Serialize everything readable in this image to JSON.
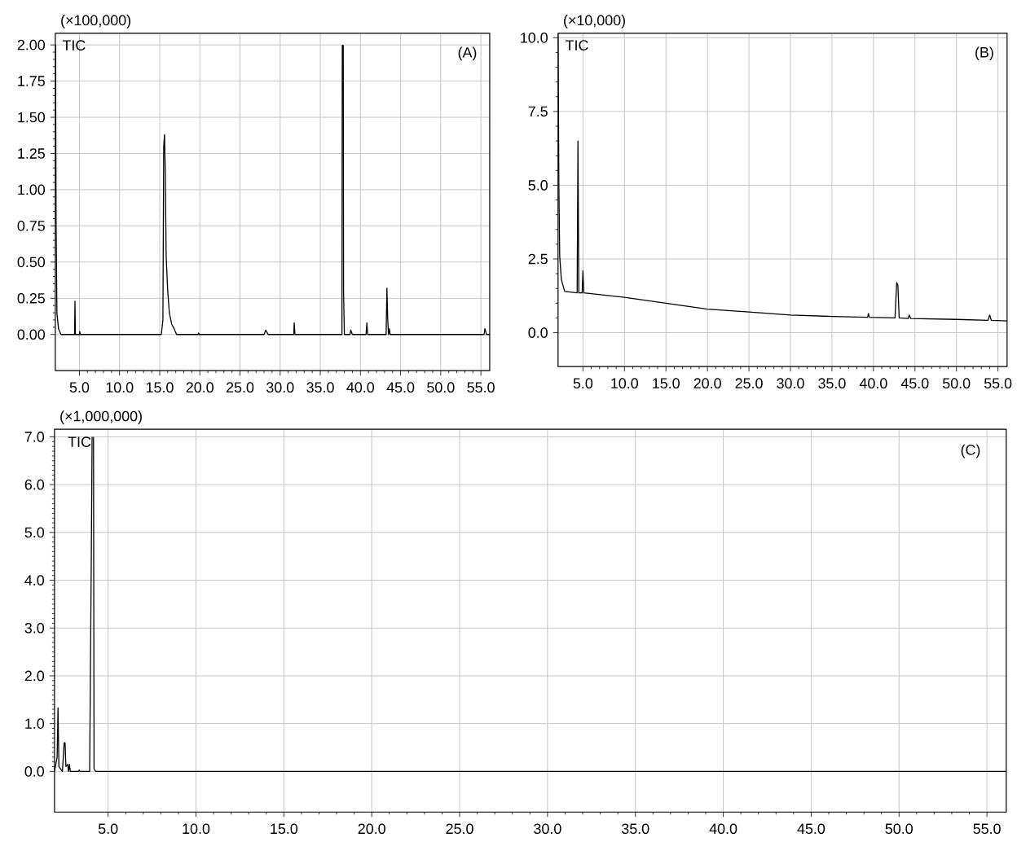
{
  "chart_data": [
    {
      "type": "line",
      "ylabel": "(×100,000)",
      "annotations": [
        "TIC",
        "(A)"
      ],
      "grid": true,
      "xlim": [
        2.0,
        56.1
      ],
      "ylim": [
        -0.25,
        2.08
      ],
      "xticks": [
        {
          "value": 5,
          "label": "5.0"
        },
        {
          "value": 10,
          "label": "10.0"
        },
        {
          "value": 15,
          "label": "15.0"
        },
        {
          "value": 20,
          "label": "20.0"
        },
        {
          "value": 25,
          "label": "25.0"
        },
        {
          "value": 30,
          "label": "30.0"
        },
        {
          "value": 35,
          "label": "35.0"
        },
        {
          "value": 40,
          "label": "40.0"
        },
        {
          "value": 45,
          "label": "45.0"
        },
        {
          "value": 50,
          "label": "50.0"
        },
        {
          "value": 55,
          "label": "55.0"
        }
      ],
      "yticks": [
        {
          "value": 0,
          "label": "0.00"
        },
        {
          "value": 0.25,
          "label": "0.25"
        },
        {
          "value": 0.5,
          "label": "0.50"
        },
        {
          "value": 0.75,
          "label": "0.75"
        },
        {
          "value": 1,
          "label": "1.00"
        },
        {
          "value": 1.25,
          "label": "1.25"
        },
        {
          "value": 1.5,
          "label": "1.50"
        },
        {
          "value": 1.75,
          "label": "1.75"
        },
        {
          "value": 2,
          "label": "2.00"
        }
      ],
      "series": [
        {
          "color": "#000000",
          "x": [
            2.03,
            2.1,
            2.2,
            2.4,
            2.7,
            4.4,
            4.45,
            4.5,
            5.0,
            5.05,
            5.1,
            15.2,
            15.4,
            15.5,
            15.6,
            15.7,
            15.8,
            15.9,
            16.0,
            16.2,
            16.5,
            16.8,
            17.1,
            19.8,
            19.85,
            19.9,
            28.0,
            28.2,
            28.5,
            31.7,
            31.75,
            31.85,
            37.7,
            37.74,
            37.8,
            37.86,
            37.9,
            38.0,
            38.7,
            38.8,
            39.0,
            40.7,
            40.8,
            40.9,
            43.2,
            43.3,
            43.4,
            43.5,
            43.6,
            43.7,
            55.4,
            55.5,
            55.7,
            56.1
          ],
          "values": [
            2.0,
            0.75,
            0.15,
            0.04,
            0.0,
            0.0,
            0.23,
            0.0,
            0.0,
            0.02,
            0.0,
            0.0,
            0.1,
            1.3,
            1.38,
            1.1,
            0.55,
            0.42,
            0.3,
            0.15,
            0.07,
            0.04,
            0.0,
            0.0,
            0.01,
            0.0,
            0.0,
            0.03,
            0.0,
            0.0,
            0.08,
            0.0,
            0.0,
            2.0,
            null,
            2.0,
            0.3,
            0.0,
            0.0,
            0.03,
            0.0,
            0.0,
            0.08,
            0.0,
            0.0,
            0.32,
            0.1,
            0.0,
            0.04,
            0.0,
            0.0,
            0.04,
            0.0,
            0.0
          ]
        }
      ]
    },
    {
      "type": "line",
      "ylabel": "(×10,000)",
      "annotations": [
        "TIC",
        "(B)"
      ],
      "grid": true,
      "xlim": [
        2.0,
        56.1
      ],
      "ylim": [
        -1.15,
        10.15
      ],
      "xticks": [
        {
          "value": 5,
          "label": "5.0"
        },
        {
          "value": 10,
          "label": "10.0"
        },
        {
          "value": 15,
          "label": "15.0"
        },
        {
          "value": 20,
          "label": "20.0"
        },
        {
          "value": 25,
          "label": "25.0"
        },
        {
          "value": 30,
          "label": "30.0"
        },
        {
          "value": 35,
          "label": "35.0"
        },
        {
          "value": 40,
          "label": "40.0"
        },
        {
          "value": 45,
          "label": "45.0"
        },
        {
          "value": 50,
          "label": "50.0"
        },
        {
          "value": 55,
          "label": "55.0"
        }
      ],
      "yticks": [
        {
          "value": 0,
          "label": "0.0"
        },
        {
          "value": 2.5,
          "label": "2.5"
        },
        {
          "value": 5,
          "label": "5.0"
        },
        {
          "value": 7.5,
          "label": "7.5"
        },
        {
          "value": 10,
          "label": "10.0"
        }
      ],
      "series": [
        {
          "color": "#000000",
          "x": [
            2.0,
            2.1,
            2.2,
            2.4,
            2.8,
            4.3,
            4.4,
            4.5,
            4.9,
            5.0,
            5.1,
            10,
            15,
            20,
            25,
            30,
            35,
            39.3,
            39.4,
            39.5,
            42.6,
            42.8,
            42.95,
            43.1,
            44.2,
            44.3,
            44.5,
            50,
            53.8,
            54.0,
            54.2,
            56.1
          ],
          "values": [
            10.15,
            5.0,
            2.6,
            1.8,
            1.4,
            1.35,
            6.5,
            1.35,
            1.35,
            2.1,
            1.35,
            1.2,
            1.0,
            0.8,
            0.7,
            0.6,
            0.55,
            0.52,
            0.65,
            0.52,
            0.5,
            1.7,
            1.6,
            0.5,
            0.48,
            0.6,
            0.48,
            0.45,
            0.42,
            0.6,
            0.42,
            0.4
          ]
        }
      ]
    },
    {
      "type": "line",
      "ylabel": "(×1,000,000)",
      "annotations": [
        "TIC",
        "(C)"
      ],
      "grid": true,
      "xlim": [
        1.95,
        56.1
      ],
      "ylim": [
        -0.85,
        7.16
      ],
      "xticks": [
        {
          "value": 5,
          "label": "5.0"
        },
        {
          "value": 10,
          "label": "10.0"
        },
        {
          "value": 15,
          "label": "15.0"
        },
        {
          "value": 20,
          "label": "20.0"
        },
        {
          "value": 25,
          "label": "25.0"
        },
        {
          "value": 30,
          "label": "30.0"
        },
        {
          "value": 35,
          "label": "35.0"
        },
        {
          "value": 40,
          "label": "40.0"
        },
        {
          "value": 45,
          "label": "45.0"
        },
        {
          "value": 50,
          "label": "50.0"
        },
        {
          "value": 55,
          "label": "55.0"
        }
      ],
      "yticks": [
        {
          "value": 0,
          "label": "0.0"
        },
        {
          "value": 1,
          "label": "1.0"
        },
        {
          "value": 2,
          "label": "2.0"
        },
        {
          "value": 3,
          "label": "3.0"
        },
        {
          "value": 4,
          "label": "4.0"
        },
        {
          "value": 5,
          "label": "5.0"
        },
        {
          "value": 6,
          "label": "6.0"
        },
        {
          "value": 7,
          "label": "7.0"
        }
      ],
      "series": [
        {
          "color": "#000000",
          "x": [
            1.95,
            2.1,
            2.15,
            2.2,
            2.3,
            2.4,
            2.45,
            2.5,
            2.55,
            2.6,
            2.7,
            2.75,
            2.8,
            2.85,
            3.3,
            3.35,
            3.4,
            3.95,
            4.05,
            4.09,
            4.13,
            4.17,
            4.2,
            4.3,
            56.1
          ],
          "values": [
            0.0,
            0.3,
            1.33,
            0.1,
            0.05,
            0.0,
            0.3,
            0.6,
            0.6,
            0.1,
            0.15,
            0.0,
            0.15,
            0.0,
            0.0,
            0.03,
            0.0,
            0.0,
            4.8,
            7.0,
            null,
            7.0,
            0.05,
            0.0,
            0.0
          ]
        }
      ]
    }
  ]
}
